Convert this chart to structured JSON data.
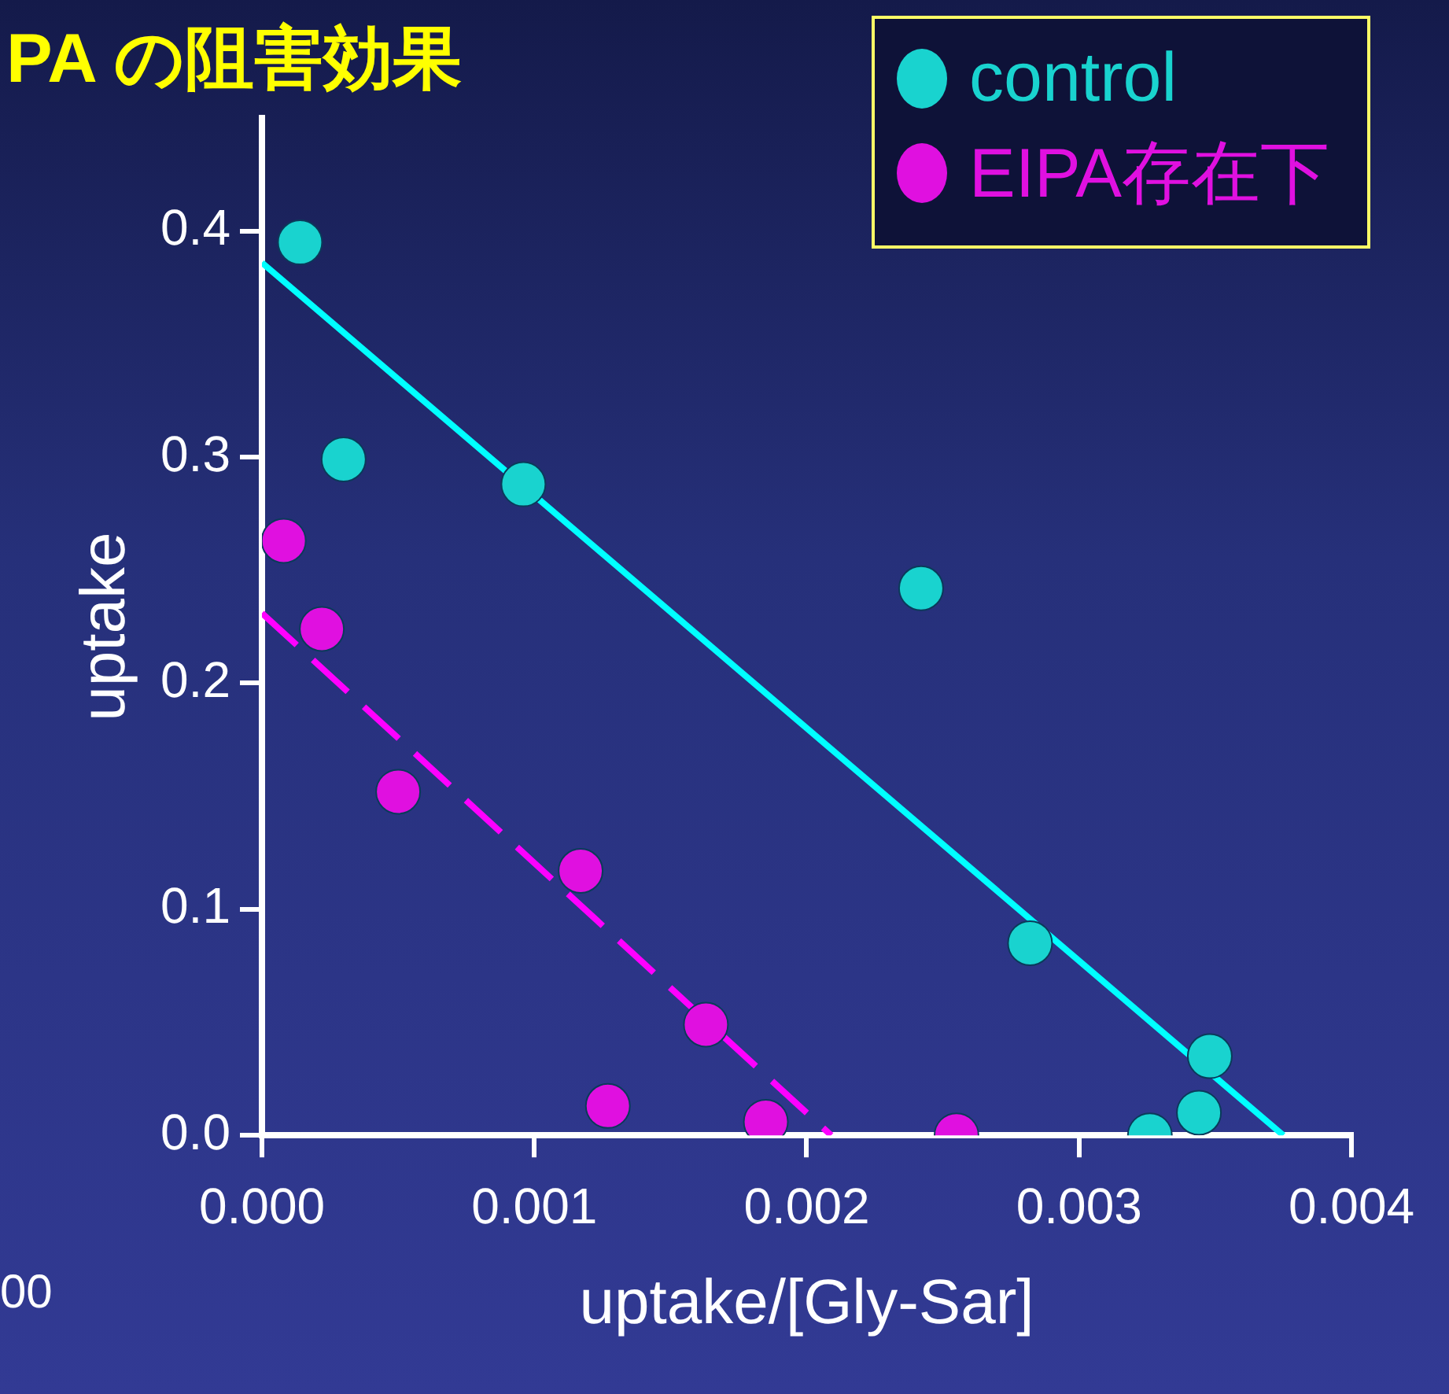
{
  "chart_data": {
    "type": "scatter",
    "title": "PA の阻害効果",
    "xlabel": "uptake/[Gly-Sar]",
    "ylabel": "uptake",
    "xlim": [
      0,
      0.004
    ],
    "ylim": [
      0,
      0.45
    ],
    "xticks": [
      {
        "value": 0,
        "label": "0.000"
      },
      {
        "value": 0.001,
        "label": "0.001"
      },
      {
        "value": 0.002,
        "label": "0.002"
      },
      {
        "value": 0.003,
        "label": "0.003"
      },
      {
        "value": 0.004,
        "label": "0.004"
      }
    ],
    "yticks": [
      {
        "value": 0,
        "label": "0.0"
      },
      {
        "value": 0.1,
        "label": "0.1"
      },
      {
        "value": 0.2,
        "label": "0.2"
      },
      {
        "value": 0.3,
        "label": "0.3"
      },
      {
        "value": 0.4,
        "label": "0.4"
      }
    ],
    "grid": false,
    "legend": "top right",
    "annotations": [
      "00"
    ],
    "series": [
      {
        "name": "control",
        "type": "scatter",
        "marker": "circle",
        "color": "#19d3cf",
        "x": [
          0.00014,
          0.0003,
          0.00096,
          0.00242,
          0.00282,
          0.00348,
          0.00344,
          0.00326
        ],
        "values": [
          0.395,
          0.299,
          0.288,
          0.242,
          0.085,
          0.035,
          0.01,
          0
        ]
      },
      {
        "name": "EIPA存在下",
        "type": "scatter",
        "marker": "circle",
        "color": "#e010e0",
        "x": [
          8e-05,
          0.00022,
          0.0005,
          0.00117,
          0.00163,
          0.00127,
          0.00185,
          0.00255
        ],
        "values": [
          0.263,
          0.224,
          0.152,
          0.117,
          0.049,
          0.013,
          0.006,
          0
        ]
      },
      {
        "type": "line",
        "color": "#00ffff",
        "line_style": "solid",
        "x": [
          0,
          0.00375
        ],
        "values": [
          0.386,
          0
        ]
      },
      {
        "type": "line",
        "color": "#ff00ff",
        "line_style": "dashed",
        "x": [
          0,
          0.00209
        ],
        "values": [
          0.231,
          0
        ]
      }
    ]
  }
}
